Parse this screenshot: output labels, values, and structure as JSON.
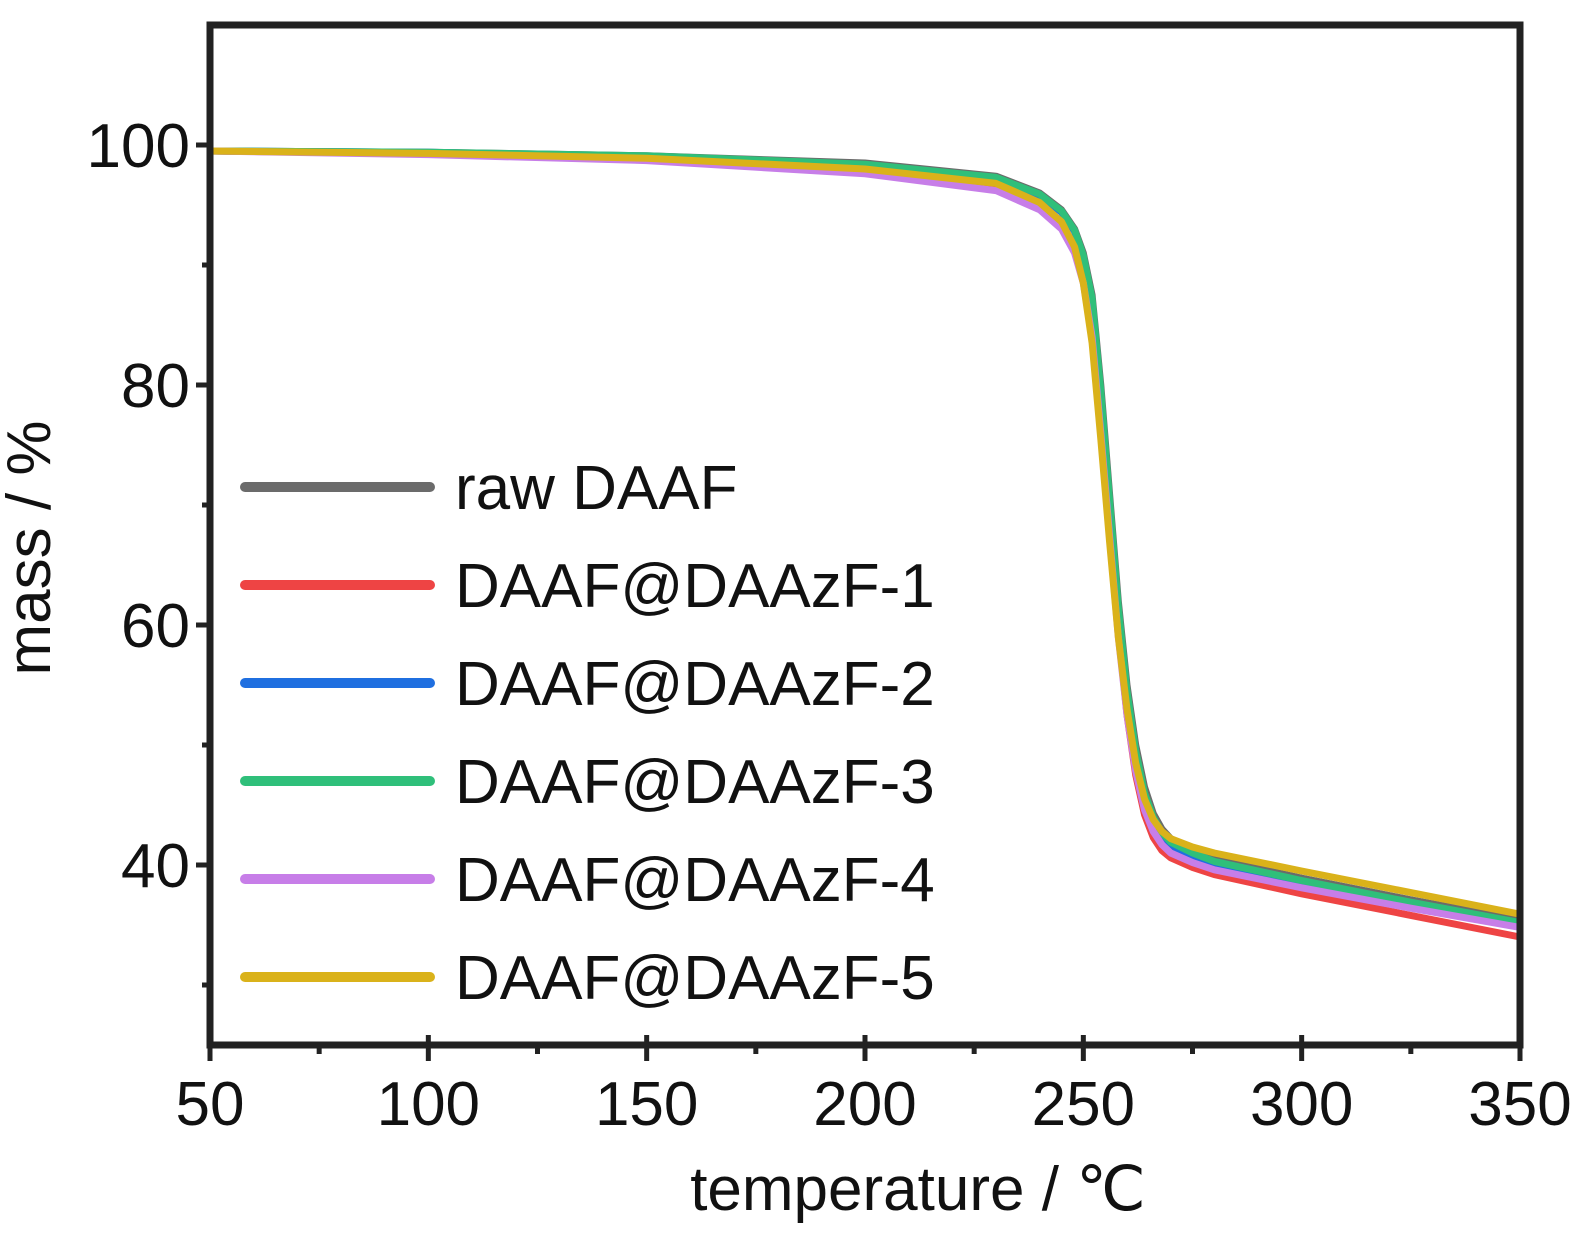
{
  "chart_data": {
    "type": "line",
    "title": "",
    "xlabel": "temperature / ℃",
    "ylabel": "mass / %",
    "xlim": [
      50,
      350
    ],
    "ylim": [
      25,
      110
    ],
    "xticks": [
      50,
      100,
      150,
      200,
      250,
      300,
      350
    ],
    "yticks": [
      40,
      60,
      80,
      100
    ],
    "grid": false,
    "legend": {
      "position": "left-center"
    },
    "series": [
      {
        "name": "raw DAAF",
        "color": "#6b6b6b",
        "x": [
          50,
          100,
          150,
          200,
          230,
          240,
          245,
          248,
          250,
          252,
          254,
          256,
          258,
          260,
          262,
          264,
          266,
          268,
          270,
          275,
          280,
          300,
          325,
          350
        ],
        "y": [
          99.5,
          99.4,
          99.1,
          98.5,
          97.4,
          96.0,
          94.6,
          93.0,
          91.0,
          87.5,
          80.0,
          71.0,
          62.0,
          55.0,
          50.0,
          46.5,
          44.3,
          43.0,
          42.2,
          41.2,
          40.5,
          38.9,
          37.1,
          35.4
        ]
      },
      {
        "name": "DAAF@DAAzF-1",
        "color": "#ee4444",
        "x": [
          50,
          100,
          150,
          200,
          230,
          240,
          245,
          248,
          250,
          252,
          254,
          256,
          258,
          260,
          262,
          264,
          266,
          268,
          270,
          275,
          280,
          300,
          325,
          350
        ],
        "y": [
          99.5,
          99.3,
          98.9,
          98.0,
          96.6,
          95.0,
          93.4,
          91.6,
          89.2,
          85.0,
          77.0,
          68.0,
          59.5,
          52.5,
          47.5,
          44.2,
          42.3,
          41.2,
          40.6,
          39.8,
          39.2,
          37.6,
          35.8,
          34.0
        ]
      },
      {
        "name": "DAAF@DAAzF-2",
        "color": "#1f6fe0",
        "x": [
          50,
          100,
          150,
          200,
          230,
          240,
          245,
          248,
          250,
          252,
          254,
          256,
          258,
          260,
          262,
          264,
          266,
          268,
          270,
          275,
          280,
          300,
          325,
          350
        ],
        "y": [
          99.5,
          99.4,
          99.0,
          98.3,
          97.2,
          95.8,
          94.4,
          92.8,
          90.6,
          86.8,
          79.0,
          70.0,
          61.0,
          54.0,
          49.0,
          45.6,
          43.6,
          42.4,
          41.6,
          40.7,
          40.0,
          38.4,
          36.6,
          34.9
        ]
      },
      {
        "name": "DAAF@DAAzF-3",
        "color": "#2fbf7a",
        "x": [
          50,
          100,
          150,
          200,
          230,
          240,
          245,
          248,
          250,
          252,
          254,
          256,
          258,
          260,
          262,
          264,
          266,
          268,
          270,
          275,
          280,
          300,
          325,
          350
        ],
        "y": [
          99.5,
          99.4,
          99.1,
          98.4,
          97.3,
          95.9,
          94.5,
          92.9,
          90.8,
          87.2,
          79.5,
          70.5,
          61.5,
          54.5,
          49.5,
          46.0,
          44.0,
          42.7,
          41.9,
          41.0,
          40.3,
          38.7,
          36.9,
          35.2
        ]
      },
      {
        "name": "DAAF@DAAzF-4",
        "color": "#c77ee8",
        "x": [
          50,
          100,
          150,
          200,
          230,
          240,
          245,
          248,
          250,
          252,
          254,
          256,
          258,
          260,
          262,
          264,
          266,
          268,
          270,
          275,
          280,
          300,
          325,
          350
        ],
        "y": [
          99.5,
          99.2,
          98.7,
          97.6,
          96.2,
          94.6,
          93.0,
          91.0,
          88.5,
          84.0,
          76.0,
          67.5,
          59.0,
          52.5,
          47.8,
          44.6,
          42.8,
          41.7,
          41.0,
          40.2,
          39.6,
          38.1,
          36.4,
          34.8
        ]
      },
      {
        "name": "DAAF@DAAzF-5",
        "color": "#dab21a",
        "x": [
          50,
          100,
          150,
          200,
          230,
          240,
          245,
          248,
          250,
          252,
          254,
          256,
          258,
          260,
          262,
          264,
          266,
          268,
          270,
          275,
          280,
          300,
          325,
          350
        ],
        "y": [
          99.5,
          99.3,
          98.9,
          98.0,
          96.8,
          95.2,
          93.6,
          91.5,
          88.5,
          83.5,
          75.5,
          67.0,
          59.0,
          53.0,
          48.5,
          45.5,
          43.8,
          42.8,
          42.2,
          41.5,
          41.0,
          39.5,
          37.7,
          35.9
        ]
      }
    ]
  }
}
